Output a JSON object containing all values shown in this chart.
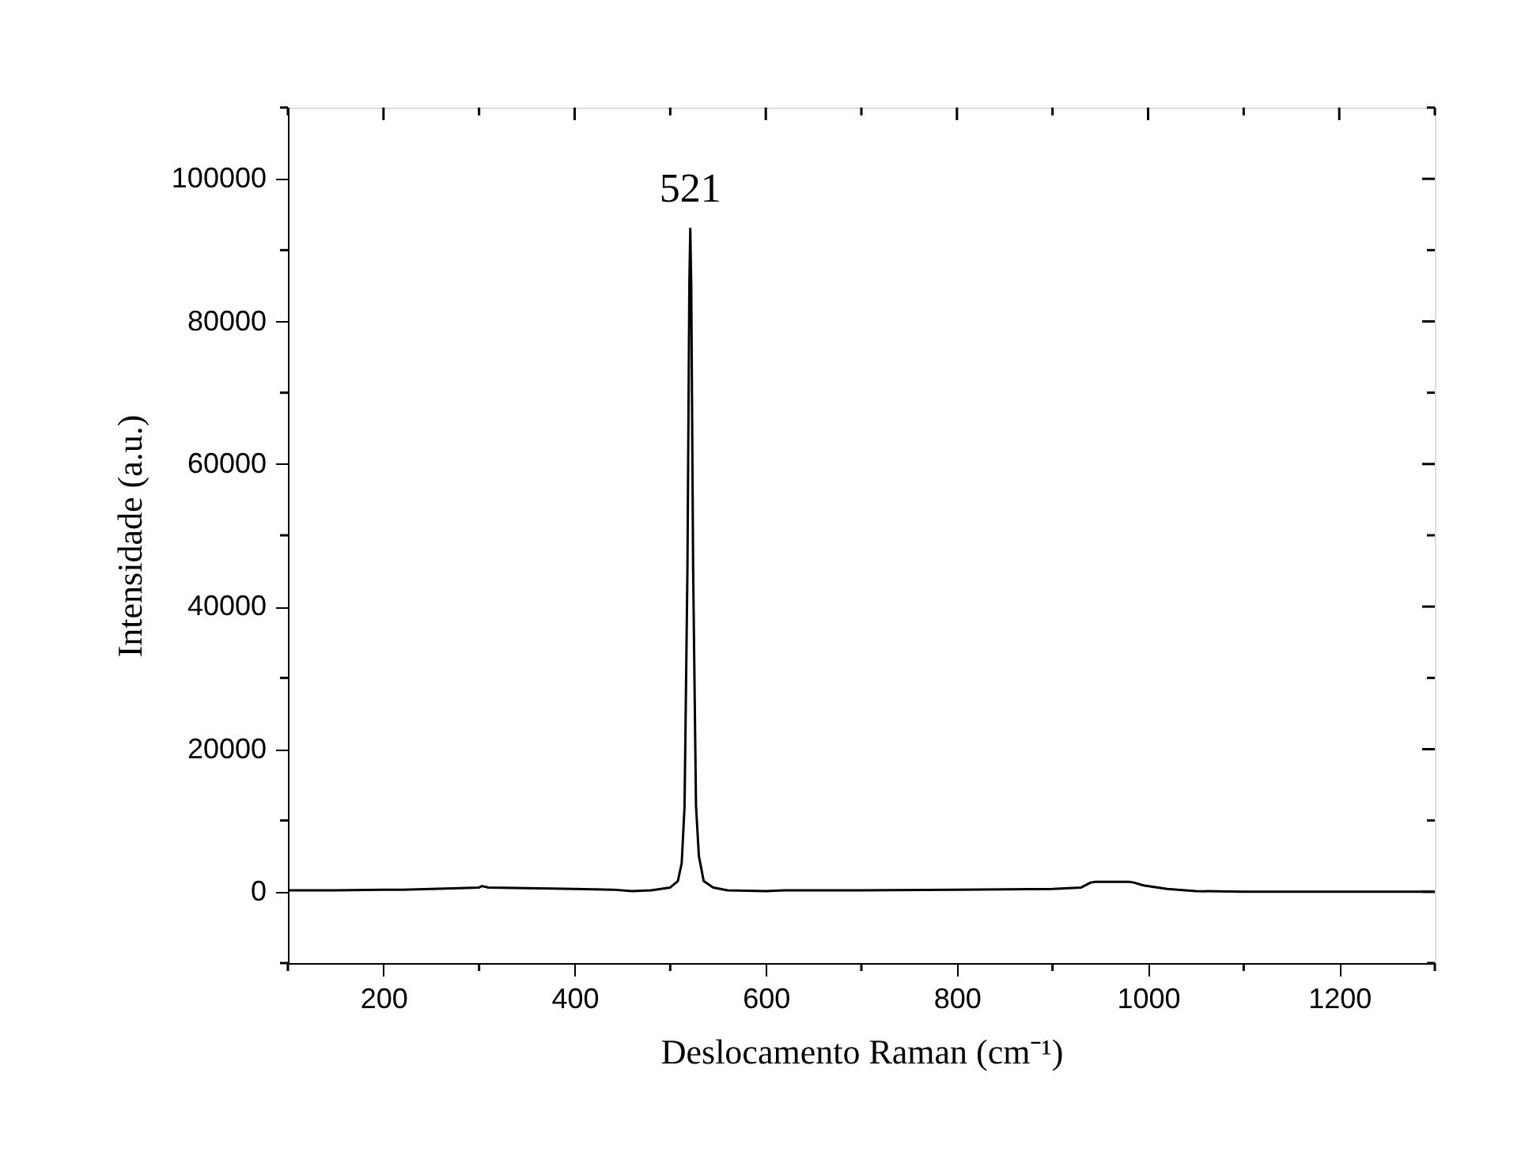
{
  "chart_data": {
    "type": "line",
    "xlabel": "Deslocamento Raman (cm⁻¹)",
    "ylabel": "Intensidade (a.u.)",
    "x": [
      100,
      150,
      200,
      220,
      250,
      280,
      300,
      303,
      310,
      350,
      400,
      440,
      460,
      480,
      500,
      508,
      512,
      515,
      518,
      520,
      521,
      522,
      524,
      527,
      530,
      535,
      545,
      560,
      600,
      620,
      700,
      800,
      900,
      930,
      940,
      945,
      960,
      980,
      985,
      995,
      1020,
      1050,
      1100,
      1200,
      1300
    ],
    "series": [
      {
        "color": "#000000",
        "values": [
          200,
          200,
          300,
          300,
          400,
          500,
          600,
          800,
          600,
          500,
          400,
          300,
          100,
          200,
          600,
          1500,
          4000,
          12000,
          45000,
          85000,
          93000,
          85000,
          45000,
          12000,
          5000,
          1500,
          600,
          200,
          100,
          200,
          200,
          300,
          400,
          600,
          1300,
          1400,
          1400,
          1400,
          1300,
          900,
          400,
          100,
          0,
          0,
          0
        ]
      }
    ],
    "xlim": [
      100,
      1300
    ],
    "xticks": [
      200,
      400,
      600,
      800,
      1000,
      1200
    ],
    "ylim": [
      -10000,
      110000
    ],
    "yticks": [
      0,
      20000,
      40000,
      60000,
      80000,
      100000
    ],
    "annotations": [
      {
        "text": "521",
        "x": 521,
        "y": 93000
      }
    ],
    "grid": false,
    "marker": "none",
    "line_style": "solid"
  }
}
